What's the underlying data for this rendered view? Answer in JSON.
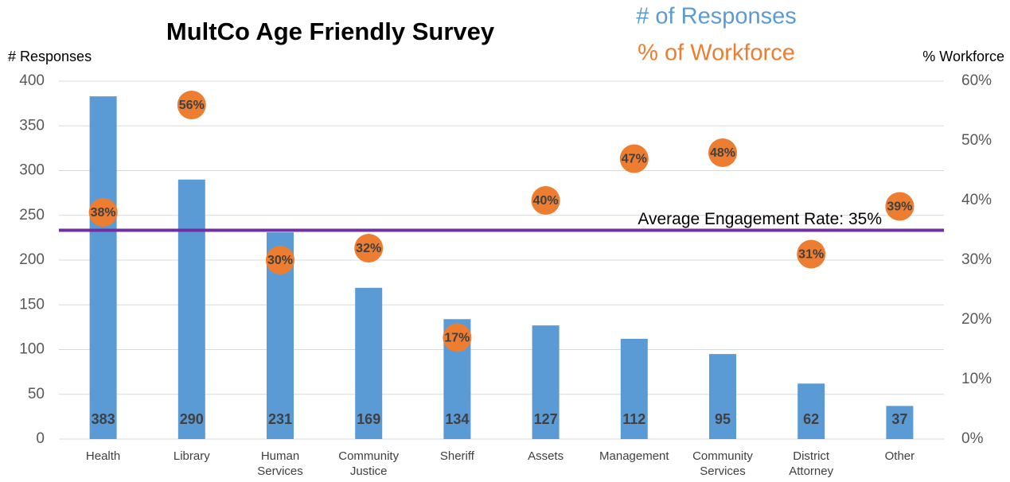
{
  "chart_data": {
    "type": "bar",
    "title": "MultCo Age Friendly Survey",
    "y_label": "# Responses",
    "y2_label": "% Workforce",
    "categories": [
      "Health",
      "Library",
      "Human Services",
      "Community Justice",
      "Sheriff",
      "Assets",
      "Management",
      "Community Services",
      "District Attorney",
      "Other"
    ],
    "series": [
      {
        "name": "# of Responses",
        "color": "#5b9bd5",
        "values": [
          383,
          290,
          231,
          169,
          134,
          127,
          112,
          95,
          62,
          37
        ]
      },
      {
        "name": "% of Workforce",
        "color": "#ed7d31",
        "axis": "y2",
        "type": "scatter",
        "values": [
          38,
          56,
          30,
          32,
          17,
          40,
          47,
          48,
          31,
          39
        ],
        "value_labels": [
          "38%",
          "56%",
          "30%",
          "32%",
          "17%",
          "40%",
          "47%",
          "48%",
          "31%",
          "39%"
        ]
      }
    ],
    "average_line": {
      "value": 35,
      "label": "Average Engagement Rate: 35%",
      "axis": "y2",
      "color": "#7030a0"
    },
    "ylim": [
      0,
      400
    ],
    "yticks": [
      0,
      50,
      100,
      150,
      200,
      250,
      300,
      350,
      400
    ],
    "y2lim": [
      0,
      60
    ],
    "y2ticks": [
      {
        "value": 0,
        "label": "0%"
      },
      {
        "value": 10,
        "label": "10%"
      },
      {
        "value": 20,
        "label": "20%"
      },
      {
        "value": 30,
        "label": "30%"
      },
      {
        "value": 40,
        "label": "40%"
      },
      {
        "value": 50,
        "label": "50%"
      },
      {
        "value": 60,
        "label": "60%"
      }
    ],
    "grid": true
  }
}
